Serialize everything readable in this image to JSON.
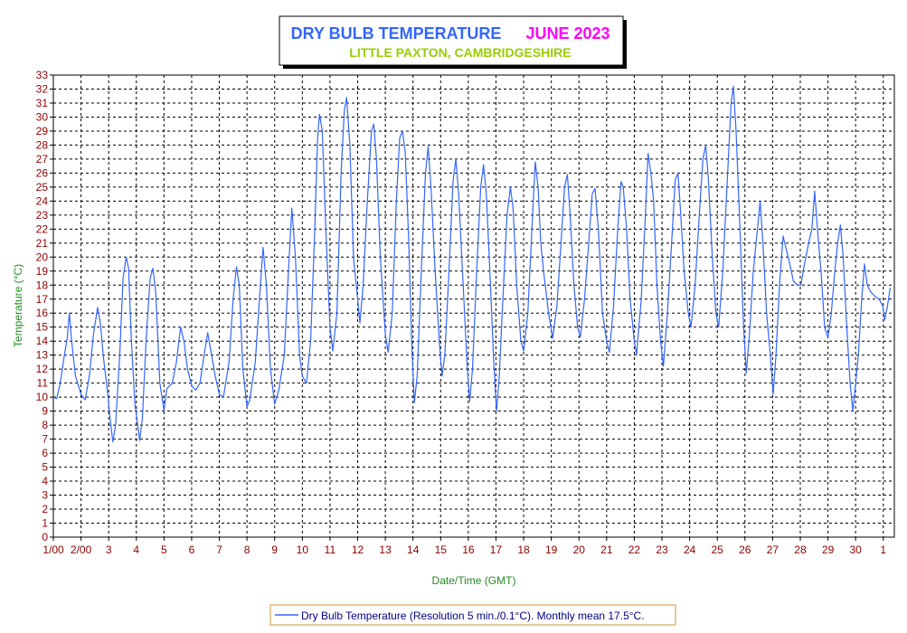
{
  "chart_data": {
    "type": "line",
    "title": "DRY BULB TEMPERATURE",
    "title_period": "JUNE 2023",
    "subtitle": "LITTLE PAXTON, CAMBRIDGESHIRE",
    "xlabel": "Date/Time (GMT)",
    "ylabel": "Temperature (°C)",
    "ylim": [
      0,
      33
    ],
    "xlim": [
      0,
      30.4
    ],
    "y_ticks": [
      0,
      1,
      2,
      3,
      4,
      5,
      6,
      7,
      8,
      9,
      10,
      11,
      12,
      13,
      14,
      15,
      16,
      17,
      18,
      19,
      20,
      21,
      22,
      23,
      24,
      25,
      26,
      27,
      28,
      29,
      30,
      31,
      32,
      33
    ],
    "x_tick_labels": [
      "1/00",
      "2/00",
      "3",
      "4",
      "5",
      "6",
      "7",
      "8",
      "9",
      "10",
      "11",
      "12",
      "13",
      "14",
      "15",
      "16",
      "17",
      "18",
      "19",
      "20",
      "21",
      "22",
      "23",
      "24",
      "25",
      "26",
      "27",
      "28",
      "29",
      "30",
      "1"
    ],
    "grid": true,
    "legend_position": "bottom",
    "series": [
      {
        "name": "Dry Bulb Temperature (Resolution 5 min./0.1°C). Monthly mean 17.5°C.",
        "color": "#3366ff",
        "points": [
          [
            0.0,
            10.0
          ],
          [
            0.12,
            9.9
          ],
          [
            0.25,
            11.0
          ],
          [
            0.4,
            13.0
          ],
          [
            0.5,
            14.2
          ],
          [
            0.58,
            16.0
          ],
          [
            0.66,
            14.0
          ],
          [
            0.8,
            11.5
          ],
          [
            1.0,
            10.2
          ],
          [
            1.15,
            9.8
          ],
          [
            1.3,
            11.5
          ],
          [
            1.45,
            14.5
          ],
          [
            1.6,
            16.4
          ],
          [
            1.7,
            15.3
          ],
          [
            1.8,
            13.0
          ],
          [
            1.95,
            10.5
          ],
          [
            2.05,
            8.5
          ],
          [
            2.15,
            6.8
          ],
          [
            2.25,
            8.0
          ],
          [
            2.4,
            13.0
          ],
          [
            2.52,
            18.5
          ],
          [
            2.63,
            20.0
          ],
          [
            2.72,
            19.2
          ],
          [
            2.82,
            14.0
          ],
          [
            2.95,
            9.5
          ],
          [
            3.05,
            8.0
          ],
          [
            3.12,
            6.9
          ],
          [
            3.22,
            8.5
          ],
          [
            3.35,
            14.0
          ],
          [
            3.5,
            18.5
          ],
          [
            3.6,
            19.2
          ],
          [
            3.7,
            17.5
          ],
          [
            3.85,
            11.0
          ],
          [
            4.0,
            9.0
          ],
          [
            4.1,
            10.6
          ],
          [
            4.3,
            11.0
          ],
          [
            4.45,
            12.5
          ],
          [
            4.6,
            15.0
          ],
          [
            4.72,
            14.0
          ],
          [
            4.85,
            12.0
          ],
          [
            5.0,
            10.8
          ],
          [
            5.15,
            10.5
          ],
          [
            5.3,
            11.0
          ],
          [
            5.45,
            13.0
          ],
          [
            5.58,
            14.6
          ],
          [
            5.7,
            13.2
          ],
          [
            5.85,
            11.5
          ],
          [
            6.0,
            10.2
          ],
          [
            6.15,
            10.0
          ],
          [
            6.35,
            12.5
          ],
          [
            6.5,
            17.0
          ],
          [
            6.62,
            19.3
          ],
          [
            6.72,
            18.0
          ],
          [
            6.85,
            12.0
          ],
          [
            7.0,
            9.3
          ],
          [
            7.1,
            9.8
          ],
          [
            7.3,
            12.5
          ],
          [
            7.45,
            17.0
          ],
          [
            7.58,
            20.7
          ],
          [
            7.7,
            18.0
          ],
          [
            7.85,
            12.0
          ],
          [
            8.0,
            9.5
          ],
          [
            8.15,
            10.5
          ],
          [
            8.35,
            13.0
          ],
          [
            8.5,
            19.0
          ],
          [
            8.62,
            23.5
          ],
          [
            8.75,
            20.0
          ],
          [
            8.9,
            13.0
          ],
          [
            9.0,
            11.5
          ],
          [
            9.15,
            11.0
          ],
          [
            9.3,
            14.0
          ],
          [
            9.45,
            22.0
          ],
          [
            9.55,
            28.5
          ],
          [
            9.62,
            30.2
          ],
          [
            9.72,
            29.0
          ],
          [
            9.85,
            22.0
          ],
          [
            10.0,
            15.0
          ],
          [
            10.1,
            13.3
          ],
          [
            10.25,
            16.0
          ],
          [
            10.4,
            26.0
          ],
          [
            10.52,
            30.5
          ],
          [
            10.6,
            31.4
          ],
          [
            10.72,
            28.0
          ],
          [
            10.85,
            20.0
          ],
          [
            11.0,
            17.0
          ],
          [
            11.08,
            15.3
          ],
          [
            11.2,
            18.0
          ],
          [
            11.35,
            24.0
          ],
          [
            11.5,
            29.0
          ],
          [
            11.58,
            29.5
          ],
          [
            11.68,
            27.0
          ],
          [
            11.82,
            20.0
          ],
          [
            12.0,
            14.5
          ],
          [
            12.1,
            13.2
          ],
          [
            12.25,
            16.0
          ],
          [
            12.4,
            24.0
          ],
          [
            12.52,
            28.5
          ],
          [
            12.62,
            29.0
          ],
          [
            12.72,
            27.5
          ],
          [
            12.85,
            21.0
          ],
          [
            12.95,
            14.0
          ],
          [
            13.05,
            9.6
          ],
          [
            13.15,
            11.5
          ],
          [
            13.3,
            19.0
          ],
          [
            13.45,
            26.0
          ],
          [
            13.55,
            27.9
          ],
          [
            13.65,
            25.0
          ],
          [
            13.8,
            19.0
          ],
          [
            13.95,
            14.0
          ],
          [
            14.05,
            11.5
          ],
          [
            14.15,
            13.0
          ],
          [
            14.3,
            19.0
          ],
          [
            14.45,
            25.5
          ],
          [
            14.55,
            27.0
          ],
          [
            14.65,
            24.5
          ],
          [
            14.8,
            18.5
          ],
          [
            14.95,
            12.5
          ],
          [
            15.05,
            9.7
          ],
          [
            15.15,
            12.0
          ],
          [
            15.3,
            19.0
          ],
          [
            15.45,
            25.0
          ],
          [
            15.55,
            26.6
          ],
          [
            15.65,
            24.5
          ],
          [
            15.8,
            18.0
          ],
          [
            15.92,
            12.5
          ],
          [
            16.02,
            9.0
          ],
          [
            16.12,
            11.5
          ],
          [
            16.25,
            17.0
          ],
          [
            16.4,
            23.0
          ],
          [
            16.52,
            25.0
          ],
          [
            16.62,
            23.5
          ],
          [
            16.75,
            18.0
          ],
          [
            16.9,
            14.0
          ],
          [
            17.0,
            13.3
          ],
          [
            17.15,
            16.0
          ],
          [
            17.3,
            22.0
          ],
          [
            17.42,
            26.8
          ],
          [
            17.52,
            25.0
          ],
          [
            17.62,
            21.0
          ],
          [
            17.72,
            19.0
          ],
          [
            17.9,
            16.0
          ],
          [
            18.05,
            14.2
          ],
          [
            18.2,
            16.5
          ],
          [
            18.35,
            21.0
          ],
          [
            18.48,
            25.0
          ],
          [
            18.58,
            25.9
          ],
          [
            18.68,
            23.0
          ],
          [
            18.82,
            18.0
          ],
          [
            18.95,
            15.0
          ],
          [
            19.05,
            14.3
          ],
          [
            19.2,
            17.0
          ],
          [
            19.35,
            21.0
          ],
          [
            19.48,
            24.5
          ],
          [
            19.58,
            24.9
          ],
          [
            19.7,
            22.0
          ],
          [
            19.85,
            16.0
          ],
          [
            20.0,
            14.0
          ],
          [
            20.1,
            13.2
          ],
          [
            20.25,
            16.5
          ],
          [
            20.4,
            22.0
          ],
          [
            20.52,
            25.4
          ],
          [
            20.6,
            25.0
          ],
          [
            20.72,
            22.0
          ],
          [
            20.85,
            17.0
          ],
          [
            21.0,
            14.0
          ],
          [
            21.08,
            13.0
          ],
          [
            21.25,
            17.0
          ],
          [
            21.4,
            23.0
          ],
          [
            21.5,
            27.4
          ],
          [
            21.6,
            26.0
          ],
          [
            21.7,
            24.0
          ],
          [
            21.82,
            18.0
          ],
          [
            21.95,
            14.0
          ],
          [
            22.05,
            12.2
          ],
          [
            22.2,
            16.0
          ],
          [
            22.35,
            21.0
          ],
          [
            22.48,
            25.5
          ],
          [
            22.58,
            26.0
          ],
          [
            22.68,
            23.0
          ],
          [
            22.8,
            19.0
          ],
          [
            22.95,
            16.0
          ],
          [
            23.05,
            15.0
          ],
          [
            23.2,
            18.0
          ],
          [
            23.35,
            23.0
          ],
          [
            23.48,
            27.0
          ],
          [
            23.58,
            28.0
          ],
          [
            23.68,
            25.5
          ],
          [
            23.82,
            20.0
          ],
          [
            23.95,
            16.0
          ],
          [
            24.05,
            15.0
          ],
          [
            24.2,
            19.0
          ],
          [
            24.35,
            25.0
          ],
          [
            24.5,
            31.0
          ],
          [
            24.58,
            32.2
          ],
          [
            24.68,
            29.0
          ],
          [
            24.82,
            22.0
          ],
          [
            24.95,
            15.0
          ],
          [
            25.05,
            11.7
          ],
          [
            25.18,
            15.0
          ],
          [
            25.3,
            19.0
          ],
          [
            25.45,
            22.0
          ],
          [
            25.55,
            24.0
          ],
          [
            25.65,
            21.0
          ],
          [
            25.78,
            16.0
          ],
          [
            25.92,
            13.0
          ],
          [
            26.02,
            10.2
          ],
          [
            26.12,
            13.0
          ],
          [
            26.25,
            18.0
          ],
          [
            26.38,
            21.5
          ],
          [
            26.5,
            20.5
          ],
          [
            26.62,
            19.5
          ],
          [
            26.75,
            18.3
          ],
          [
            26.9,
            18.0
          ],
          [
            27.02,
            18.0
          ],
          [
            27.15,
            19.5
          ],
          [
            27.3,
            21.0
          ],
          [
            27.42,
            22.0
          ],
          [
            27.52,
            24.7
          ],
          [
            27.62,
            22.0
          ],
          [
            27.75,
            19.0
          ],
          [
            27.88,
            15.0
          ],
          [
            28.0,
            14.2
          ],
          [
            28.12,
            16.0
          ],
          [
            28.25,
            19.0
          ],
          [
            28.35,
            21.0
          ],
          [
            28.45,
            22.3
          ],
          [
            28.55,
            20.0
          ],
          [
            28.68,
            15.0
          ],
          [
            28.8,
            11.0
          ],
          [
            28.9,
            9.0
          ],
          [
            29.0,
            11.0
          ],
          [
            29.1,
            13.0
          ],
          [
            29.22,
            17.0
          ],
          [
            29.32,
            19.5
          ],
          [
            29.42,
            18.0
          ],
          [
            29.55,
            17.5
          ],
          [
            29.7,
            17.2
          ],
          [
            29.85,
            17.0
          ],
          [
            29.98,
            16.5
          ],
          [
            30.05,
            15.5
          ],
          [
            30.15,
            16.5
          ],
          [
            30.25,
            17.8
          ]
        ]
      }
    ]
  }
}
